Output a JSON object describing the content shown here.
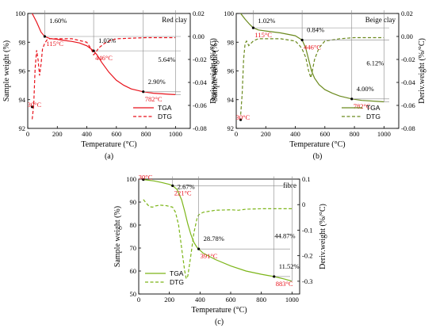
{
  "chart_data": [
    {
      "type": "line",
      "panel_label": "(a)",
      "sample_label": "Red clay",
      "color": "#e8121b",
      "xlabel": "Temperature (°C)",
      "ylabel": "Sample weight (%)",
      "y2label": "Deriv.weight (%/°C)",
      "xlim": [
        0,
        1100
      ],
      "ylim": [
        92,
        100
      ],
      "y2lim": [
        -0.08,
        0.02
      ],
      "xticks": [
        0,
        200,
        400,
        600,
        800,
        1000
      ],
      "yticks": [
        92,
        94,
        96,
        98,
        100
      ],
      "y2ticks": [
        -0.08,
        -0.06,
        -0.04,
        -0.02,
        0.0,
        0.02
      ],
      "ytick_labels": [
        "92",
        "94",
        "96",
        "98",
        "100"
      ],
      "y2tick_labels": [
        "-0.08",
        "-0.06",
        "-0.04",
        "-0.02",
        "0.00",
        "0.02"
      ],
      "legend_position": "bottom-right",
      "series": [
        {
          "name": "TGA",
          "axis": "left",
          "style": "solid",
          "x": [
            30,
            60,
            90,
            115,
            150,
            200,
            250,
            300,
            350,
            400,
            446,
            470,
            500,
            550,
            600,
            650,
            700,
            782,
            850,
            950,
            1000
          ],
          "y": [
            100,
            99.4,
            98.7,
            98.4,
            98.25,
            98.2,
            98.12,
            98.05,
            97.95,
            97.75,
            97.4,
            97.1,
            96.6,
            95.9,
            95.35,
            95.0,
            94.75,
            94.55,
            94.45,
            94.38,
            94.35
          ]
        },
        {
          "name": "DTG",
          "axis": "right",
          "style": "dashed",
          "x": [
            30,
            40,
            50,
            60,
            70,
            80,
            90,
            100,
            115,
            130,
            150,
            200,
            300,
            400,
            430,
            446,
            460,
            480,
            500,
            520,
            550,
            600,
            700,
            800,
            900,
            1000
          ],
          "y": [
            -0.072,
            -0.06,
            -0.028,
            -0.012,
            -0.02,
            -0.034,
            -0.024,
            -0.011,
            -0.006,
            -0.003,
            -0.002,
            -0.002,
            -0.002,
            -0.005,
            -0.011,
            -0.016,
            -0.014,
            -0.01,
            -0.008,
            -0.006,
            -0.004,
            -0.002,
            -0.0015,
            -0.001,
            -0.001,
            -0.001
          ]
        }
      ],
      "temp_annotations": [
        {
          "text": "30°C",
          "x": 30,
          "y": 93.5
        },
        {
          "text": "115°C",
          "x": 115,
          "y": 98.4
        },
        {
          "text": "446°C",
          "x": 446,
          "y": 97.4
        },
        {
          "text": "782°C",
          "x": 782,
          "y": 94.55
        }
      ],
      "loss_annotations": [
        {
          "text": "1.60%",
          "x": 115
        },
        {
          "text": "1.02%",
          "x": 446
        },
        {
          "text": "2.90%",
          "x": 782
        },
        {
          "text": "5.64%",
          "x": 1000
        }
      ]
    },
    {
      "type": "line",
      "panel_label": "(b)",
      "sample_label": "Beige clay",
      "color": "#6b8a1e",
      "xlabel": "Temperature (°C)",
      "ylabel": "Sample weight (%)",
      "y2label": "Deriv.weight (%/°C)",
      "xlim": [
        0,
        1100
      ],
      "ylim": [
        92,
        100
      ],
      "y2lim": [
        -0.08,
        0.02
      ],
      "xticks": [
        0,
        200,
        400,
        600,
        800,
        1000
      ],
      "yticks": [
        92,
        94,
        96,
        98,
        100
      ],
      "y2ticks": [
        -0.08,
        -0.06,
        -0.04,
        -0.02,
        0.0,
        0.02
      ],
      "ytick_labels": [
        "92",
        "94",
        "96",
        "98",
        "100"
      ],
      "y2tick_labels": [
        "-0.08",
        "-0.06",
        "-0.04",
        "-0.02",
        "0.00",
        "0.02"
      ],
      "legend_position": "bottom-right",
      "series": [
        {
          "name": "TGA",
          "axis": "left",
          "style": "solid",
          "x": [
            30,
            60,
            90,
            115,
            150,
            200,
            300,
            400,
            446,
            470,
            490,
            510,
            530,
            560,
            600,
            650,
            700,
            782,
            850,
            950,
            1000
          ],
          "y": [
            100,
            99.6,
            99.25,
            99.0,
            98.85,
            98.78,
            98.65,
            98.45,
            98.15,
            97.6,
            96.8,
            96.0,
            95.5,
            95.05,
            94.7,
            94.45,
            94.25,
            94.05,
            93.95,
            93.88,
            93.85
          ]
        },
        {
          "name": "DTG",
          "axis": "right",
          "style": "dashed",
          "x": [
            30,
            40,
            50,
            60,
            70,
            85,
            100,
            115,
            130,
            150,
            200,
            300,
            400,
            430,
            446,
            470,
            490,
            505,
            515,
            530,
            560,
            600,
            700,
            800,
            900,
            1000
          ],
          "y": [
            -0.068,
            -0.05,
            -0.02,
            -0.006,
            -0.004,
            -0.008,
            -0.006,
            -0.004,
            -0.003,
            -0.002,
            -0.002,
            -0.002,
            -0.004,
            -0.008,
            -0.011,
            -0.018,
            -0.03,
            -0.036,
            -0.03,
            -0.02,
            -0.01,
            -0.004,
            -0.002,
            -0.001,
            -0.001,
            -0.001
          ]
        }
      ],
      "temp_annotations": [
        {
          "text": "30°C",
          "x": 30,
          "y": 92.6
        },
        {
          "text": "115°C",
          "x": 115,
          "y": 99.0
        },
        {
          "text": "446°C",
          "x": 446,
          "y": 98.15
        },
        {
          "text": "782°C",
          "x": 782,
          "y": 94.05
        }
      ],
      "loss_annotations": [
        {
          "text": "1.02%",
          "x": 115
        },
        {
          "text": "0.84%",
          "x": 446
        },
        {
          "text": "4.00%",
          "x": 782
        },
        {
          "text": "6.12%",
          "x": 1000
        }
      ]
    },
    {
      "type": "line",
      "panel_label": "(c)",
      "sample_label": "fibre",
      "color": "#7cb518",
      "xlabel": "Temperature (°C)",
      "ylabel": "Sample weight (%)",
      "y2label": "Deriv.weight (%/°C)",
      "xlim": [
        0,
        1050
      ],
      "ylim": [
        50,
        100
      ],
      "y2lim": [
        -0.35,
        0.1
      ],
      "xticks": [
        0,
        200,
        400,
        600,
        800,
        1000
      ],
      "yticks": [
        50,
        60,
        70,
        80,
        90,
        100
      ],
      "y2ticks": [
        -0.3,
        -0.2,
        -0.1,
        0.0,
        0.1
      ],
      "ytick_labels": [
        "50",
        "60",
        "70",
        "80",
        "90",
        "100"
      ],
      "y2tick_labels": [
        "-0.3",
        "-0.2",
        "-0.1",
        "0",
        "0.1"
      ],
      "legend_position": "bottom-left",
      "series": [
        {
          "name": "TGA",
          "axis": "left",
          "style": "solid",
          "x": [
            30,
            100,
            150,
            200,
            221,
            250,
            280,
            300,
            320,
            340,
            360,
            380,
            391,
            420,
            500,
            600,
            700,
            800,
            883,
            950,
            1000
          ],
          "y": [
            99.8,
            99.2,
            98.5,
            97.7,
            97.1,
            95.5,
            91.0,
            86.0,
            80.5,
            76.0,
            72.5,
            70.3,
            69.6,
            67.8,
            65.0,
            62.2,
            60.0,
            58.6,
            57.6,
            56.5,
            55.6
          ]
        },
        {
          "name": "DTG",
          "axis": "right",
          "style": "dashed",
          "x": [
            30,
            50,
            70,
            90,
            110,
            140,
            180,
            221,
            240,
            260,
            280,
            300,
            310,
            320,
            340,
            360,
            380,
            391,
            420,
            500,
            600,
            650,
            700,
            800,
            900,
            1000
          ],
          "y": [
            0.02,
            0.005,
            -0.008,
            -0.01,
            -0.005,
            -0.002,
            -0.004,
            -0.01,
            -0.03,
            -0.08,
            -0.17,
            -0.26,
            -0.29,
            -0.28,
            -0.2,
            -0.11,
            -0.055,
            -0.04,
            -0.03,
            -0.022,
            -0.02,
            -0.022,
            -0.018,
            -0.016,
            -0.016,
            -0.016
          ]
        }
      ],
      "temp_annotations": [
        {
          "text": "30°C",
          "x": 30,
          "y": 99.8
        },
        {
          "text": "221°C",
          "x": 221,
          "y": 97.1
        },
        {
          "text": "391°C",
          "x": 391,
          "y": 69.6
        },
        {
          "text": "883°C",
          "x": 883,
          "y": 57.6
        }
      ],
      "loss_annotations": [
        {
          "text": "2.67%",
          "x": 221
        },
        {
          "text": "28.78%",
          "x": 391
        },
        {
          "text": "11.52%",
          "x": 883
        },
        {
          "text": "44.87%",
          "x": 1000
        }
      ]
    }
  ]
}
